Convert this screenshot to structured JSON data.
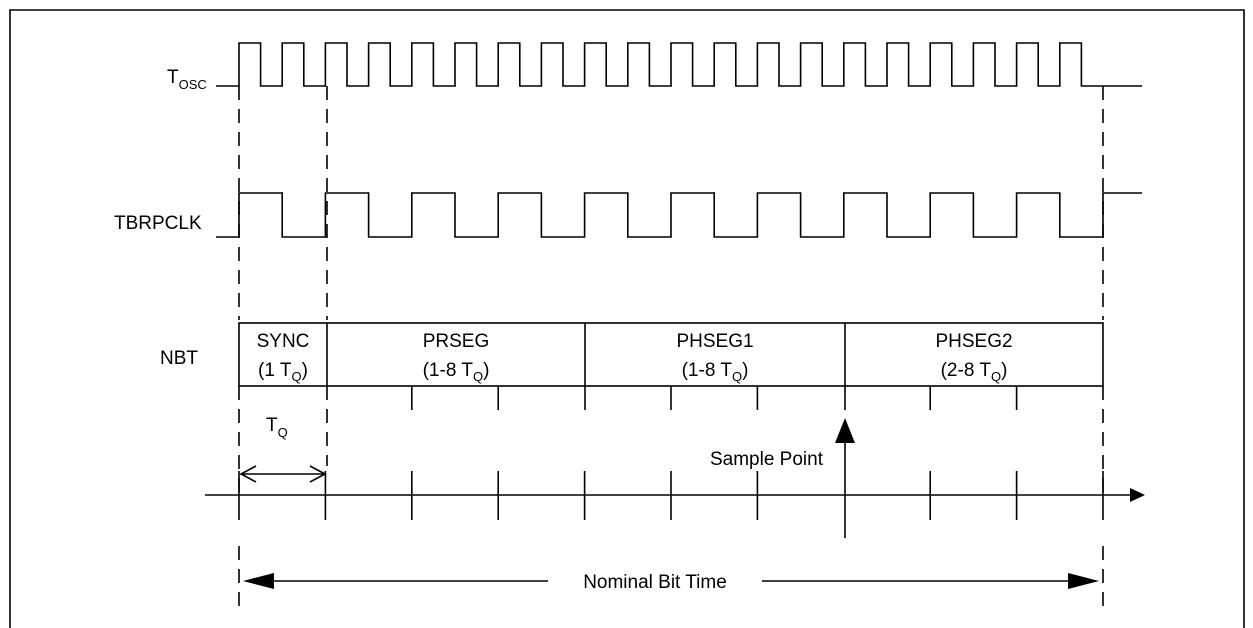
{
  "signals": {
    "tosc": {
      "main": "T",
      "sub": "OSC"
    },
    "tbrpclk": {
      "label": "TBRPCLK"
    },
    "nbt": {
      "label": "NBT"
    }
  },
  "segments": [
    {
      "name": "SYNC",
      "range_main": "(1 T",
      "range_sub": "Q",
      "range_end": ")"
    },
    {
      "name": "PRSEG",
      "range_main": "(1-8 T",
      "range_sub": "Q",
      "range_end": ")"
    },
    {
      "name": "PHSEG1",
      "range_main": "(1-8 T",
      "range_sub": "Q",
      "range_end": ")"
    },
    {
      "name": "PHSEG2",
      "range_main": "(2-8 T",
      "range_sub": "Q",
      "range_end": ")"
    }
  ],
  "tq_label": {
    "main": "T",
    "sub": "Q"
  },
  "sample_point_label": "Sample Point",
  "nominal_bit_time_label": "Nominal Bit Time"
}
